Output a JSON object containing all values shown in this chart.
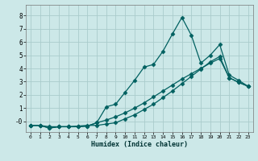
{
  "xlabel": "Humidex (Indice chaleur)",
  "bg_color": "#cce8e8",
  "grid_color": "#aacccc",
  "line_color": "#006060",
  "xlim": [
    -0.5,
    23.5
  ],
  "ylim": [
    -0.8,
    8.8
  ],
  "xticks": [
    0,
    1,
    2,
    3,
    4,
    5,
    6,
    7,
    8,
    9,
    10,
    11,
    12,
    13,
    14,
    15,
    16,
    17,
    18,
    19,
    20,
    21,
    22,
    23
  ],
  "yticks": [
    0,
    1,
    2,
    3,
    4,
    5,
    6,
    7,
    8
  ],
  "ytick_labels": [
    "-0",
    "1",
    "2",
    "3",
    "4",
    "5",
    "6",
    "7",
    "8"
  ],
  "line1_x": [
    0,
    1,
    2,
    3,
    4,
    5,
    6,
    7,
    8,
    9,
    10,
    11,
    12,
    13,
    14,
    15,
    16,
    17,
    18,
    19,
    20,
    21,
    22,
    23
  ],
  "line1_y": [
    -0.3,
    -0.3,
    -0.5,
    -0.4,
    -0.4,
    -0.4,
    -0.35,
    -0.1,
    0.1,
    0.35,
    0.65,
    1.0,
    1.4,
    1.85,
    2.3,
    2.75,
    3.2,
    3.6,
    4.0,
    4.4,
    4.75,
    3.3,
    2.95,
    2.65
  ],
  "line2_x": [
    0,
    1,
    2,
    3,
    4,
    5,
    6,
    7,
    8,
    9,
    10,
    11,
    12,
    13,
    14,
    15,
    16,
    17,
    18,
    19,
    20,
    21,
    22,
    23
  ],
  "line2_y": [
    -0.3,
    -0.3,
    -0.5,
    -0.4,
    -0.4,
    -0.4,
    -0.35,
    -0.1,
    1.1,
    1.3,
    2.2,
    3.1,
    4.1,
    4.3,
    5.3,
    6.6,
    7.85,
    6.5,
    4.4,
    5.0,
    5.8,
    3.5,
    3.1,
    2.65
  ],
  "line3_x": [
    0,
    1,
    2,
    3,
    4,
    5,
    6,
    7,
    8,
    9,
    10,
    11,
    12,
    13,
    14,
    15,
    16,
    17,
    18,
    19,
    20,
    21,
    22,
    23
  ],
  "line3_y": [
    -0.3,
    -0.3,
    -0.4,
    -0.4,
    -0.4,
    -0.35,
    -0.3,
    -0.3,
    -0.2,
    -0.1,
    0.2,
    0.5,
    0.9,
    1.3,
    1.8,
    2.3,
    2.85,
    3.4,
    3.95,
    4.5,
    4.9,
    3.3,
    2.95,
    2.65
  ],
  "marker": "D",
  "marker_size": 2.5,
  "line_width": 0.9
}
